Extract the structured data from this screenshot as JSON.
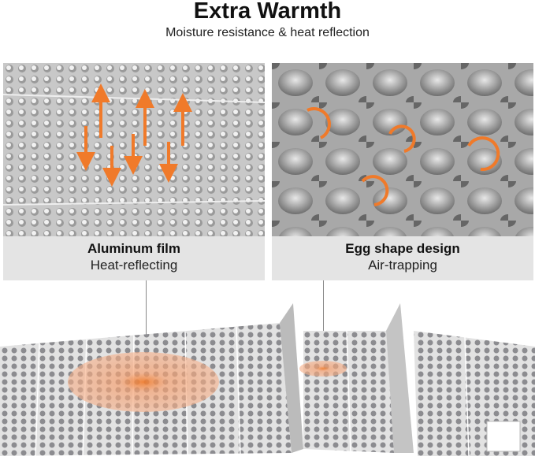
{
  "header": {
    "title": "Extra Warmth",
    "subtitle": "Moisture resistance & heat reflection"
  },
  "panels": [
    {
      "heading": "Aluminum film",
      "subheading": "Heat-reflecting"
    },
    {
      "heading": "Egg shape design",
      "subheading": "Air-trapping"
    }
  ],
  "colors": {
    "accent": "#f07a2a",
    "caption_bg": "#e4e4e4",
    "surface": "#b9b9b9"
  }
}
